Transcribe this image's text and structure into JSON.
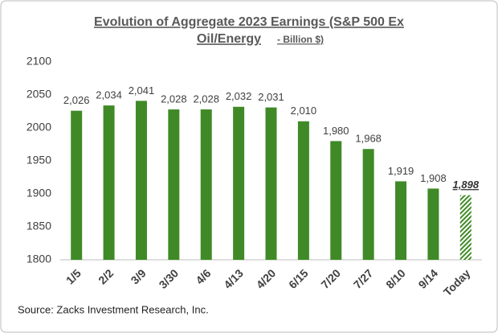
{
  "chart_data": {
    "type": "bar",
    "title_lines": [
      "Evolution of Aggregate 2023 Earnings (S&P 500 Ex",
      "Oil/Energy"
    ],
    "unit": "- Billion $)",
    "categories": [
      "1/5",
      "2/2",
      "3/9",
      "3/30",
      "4/6",
      "4/13",
      "4/20",
      "6/15",
      "7/20",
      "7/27",
      "8/10",
      "9/14",
      "Today"
    ],
    "values": [
      2026,
      2034,
      2041,
      2028,
      2028,
      2032,
      2031,
      2010,
      1980,
      1968,
      1919,
      1908,
      1898
    ],
    "value_labels": [
      "2,026",
      "2,034",
      "2,041",
      "2,028",
      "2,028",
      "2,032",
      "2,031",
      "2,010",
      "1,980",
      "1,968",
      "1,919",
      "1,908",
      "1,898"
    ],
    "color": "#3f8a26",
    "estimate_last": true,
    "ylim": [
      1800,
      2100
    ],
    "yticks": [
      1800,
      1850,
      1900,
      1950,
      2000,
      2050,
      2100
    ],
    "grid": false,
    "source": "Source: Zacks Investment Research, Inc."
  }
}
